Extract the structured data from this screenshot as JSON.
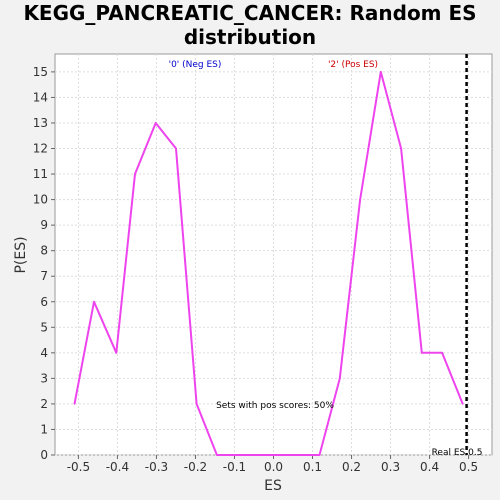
{
  "chart_data": {
    "type": "line",
    "title": "KEGG_PANCREATIC_CANCER: Random ES distribution",
    "xlabel": "ES",
    "ylabel": "P(ES)",
    "xlim": [
      -0.56,
      0.56
    ],
    "ylim": [
      0,
      15.7
    ],
    "x_ticks": [
      "-0.5",
      "-0.4",
      "-0.3",
      "-0.2",
      "-0.1",
      "0.0",
      "0.1",
      "0.2",
      "0.3",
      "0.4",
      "0.5"
    ],
    "x_tick_values": [
      -0.5,
      -0.4,
      -0.3,
      -0.2,
      -0.1,
      0.0,
      0.1,
      0.2,
      0.3,
      0.4,
      0.5
    ],
    "y_ticks": [
      "0",
      "1",
      "2",
      "3",
      "4",
      "5",
      "6",
      "7",
      "8",
      "9",
      "10",
      "11",
      "12",
      "13",
      "14",
      "15"
    ],
    "y_tick_values": [
      0,
      1,
      2,
      3,
      4,
      5,
      6,
      7,
      8,
      9,
      10,
      11,
      12,
      13,
      14,
      15
    ],
    "grid": true,
    "series": [
      {
        "color": "#ee44ee",
        "x": [
          -0.51,
          -0.46,
          -0.403,
          -0.355,
          -0.302,
          -0.25,
          -0.197,
          -0.145,
          -0.092,
          0.013,
          0.118,
          0.17,
          0.222,
          0.275,
          0.327,
          0.38,
          0.432,
          0.485
        ],
        "y": [
          2,
          6,
          4,
          11,
          13,
          12,
          2,
          0,
          0,
          0,
          0,
          3,
          10,
          15,
          12,
          4,
          4,
          2
        ]
      }
    ],
    "real_es": {
      "value": 0.5,
      "label": "Real ES 0.5",
      "color": "#000000"
    },
    "annotations": [
      {
        "text": "'0' (Neg ES)",
        "color": "#0000cc"
      },
      {
        "text": "'2' (Pos ES)",
        "color": "#cc0000"
      },
      {
        "text": "Sets with pos scores: 50%",
        "color": "#000000"
      }
    ]
  }
}
